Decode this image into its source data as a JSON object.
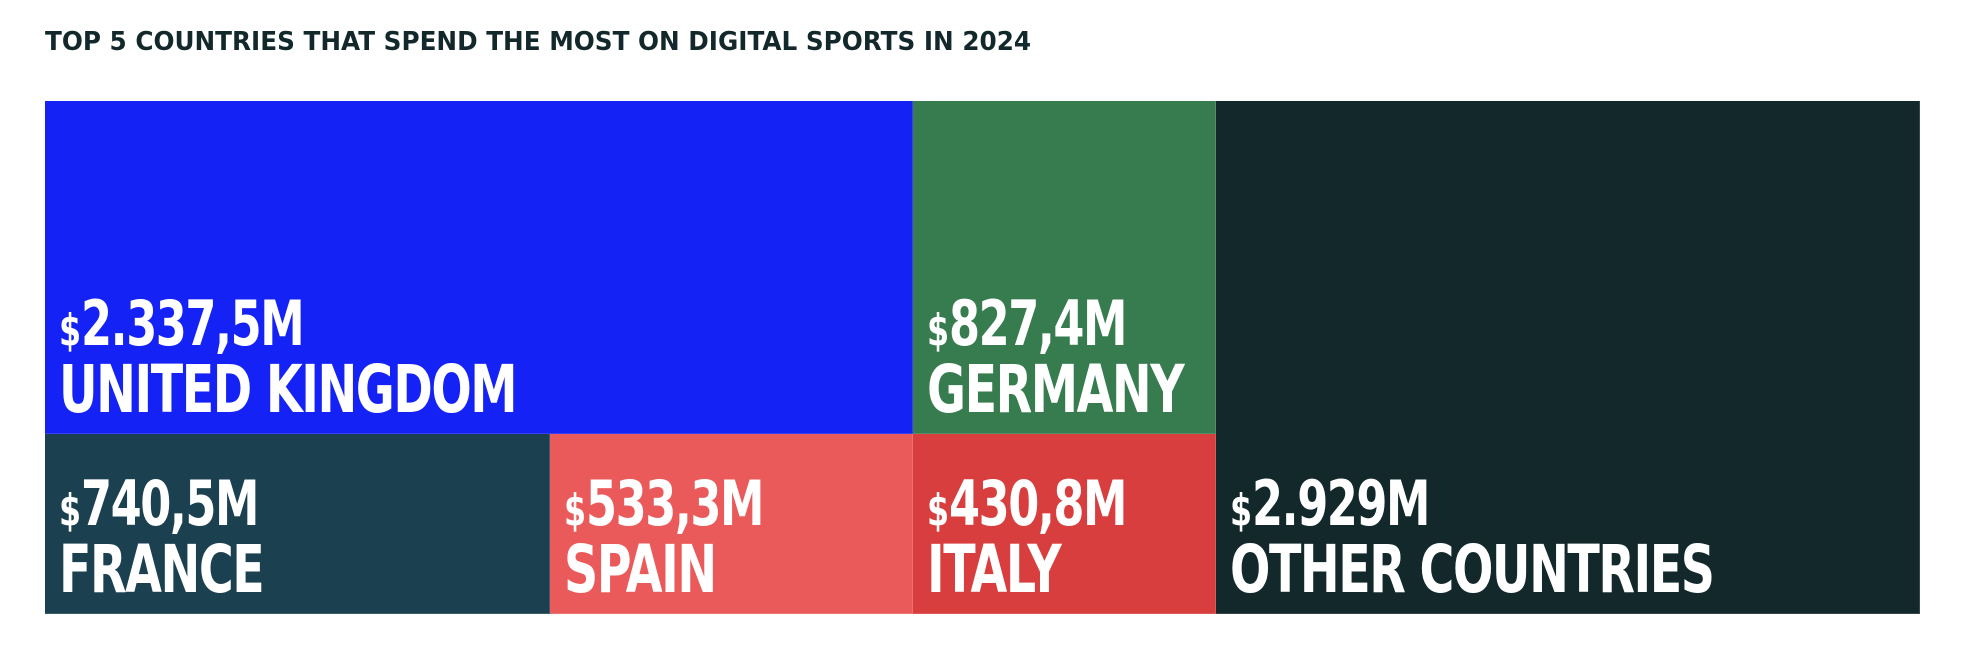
{
  "title": "TOP 5 COUNTRIES THAT SPEND THE MOST ON DIGITAL SPORTS IN 2024",
  "chart_data": {
    "type": "treemap",
    "title": "TOP 5 COUNTRIES THAT SPEND THE MOST ON DIGITAL SPORTS IN 2024",
    "unit": "M",
    "currency_symbol": "$",
    "items": [
      {
        "name": "UNITED KINGDOM",
        "value": 2337.5,
        "value_label": "2.337,5M",
        "color": "#1522f5"
      },
      {
        "name": "GERMANY",
        "value": 827.4,
        "value_label": "827,4M",
        "color": "#377c4f"
      },
      {
        "name": "FRANCE",
        "value": 740.5,
        "value_label": "740,5M",
        "color": "#1b4150"
      },
      {
        "name": "SPAIN",
        "value": 533.3,
        "value_label": "533,3M",
        "color": "#eb5a5a"
      },
      {
        "name": "ITALY",
        "value": 430.8,
        "value_label": "430,8M",
        "color": "#d83e3e"
      },
      {
        "name": "OTHER COUNTRIES",
        "value": 2929,
        "value_label": "2.929M",
        "color": "#12282a"
      }
    ]
  }
}
